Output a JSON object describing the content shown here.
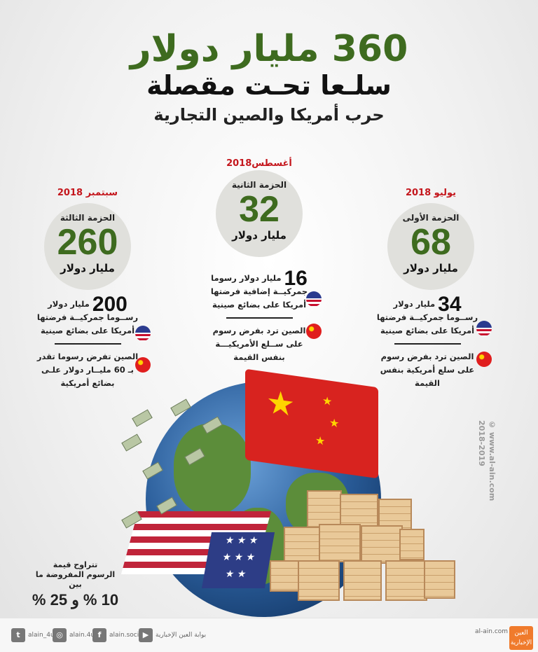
{
  "header": {
    "title": "360 مليار دولار",
    "subtitle": "سلـعا تحـت مقصلة",
    "tagline": "حرب أمريكا والصين التجارية"
  },
  "packages": [
    {
      "date": "يوليو 2018",
      "label": "الحزمة الأولى",
      "amount": "68",
      "unit": "مليار دولار",
      "us_amount": "34",
      "us_amount_unit": "مليار دولار",
      "us_text_1": "رســوما جمركيــة فرضتها",
      "us_text_2": "أمريكا على بضائع صينية",
      "cn_text_1": "الصين ترد بفرض رسوم",
      "cn_text_2": "على سلع أمريكية بنفس",
      "cn_text_3": "القيمة"
    },
    {
      "date": "أغسطس2018",
      "label": "الحزمة الثانية",
      "amount": "32",
      "unit": "مليار دولار",
      "us_amount": "16",
      "us_amount_unit": "مليار دولار رسوما",
      "us_text_1": "جمركيــة إضافية فرضتها",
      "us_text_2": "أمريكا على بضائع صينية",
      "cn_text_1": "الصين ترد بفرض رسوم",
      "cn_text_2": "على ســلع الأمريكيـــة",
      "cn_text_3": "بنفس القيمة"
    },
    {
      "date": "سبتمبر 2018",
      "label": "الحزمة الثالثة",
      "amount": "260",
      "unit": "مليار دولار",
      "us_amount": "200",
      "us_amount_unit": "مليار دولار",
      "us_text_1": "رســوما جمركيــة فرضتها",
      "us_text_2": "أمريكا على بضائع صينية",
      "cn_text_1": "الصين تفرض رسوما تقدر",
      "cn_text_2": "بـ 60 مليــار دولار علـى",
      "cn_text_3": "بضائع أمريكية"
    }
  ],
  "note": {
    "line1": "تتراوح قيمة",
    "line2": "الرسوم المفروضة ما بين",
    "range": "10 % و 25 %"
  },
  "copyright": "© www.al-ain.com 2018-2019",
  "footer": {
    "youtube": "بوابة العين الإخبارية",
    "facebook": "alain.social",
    "instagram": "alain.4u",
    "twitter": "alain_4u",
    "site": "al-ain.com",
    "logo_text": "العين الإخبارية"
  },
  "colors": {
    "green": "#3e6b1f",
    "red": "#c4161c"
  }
}
